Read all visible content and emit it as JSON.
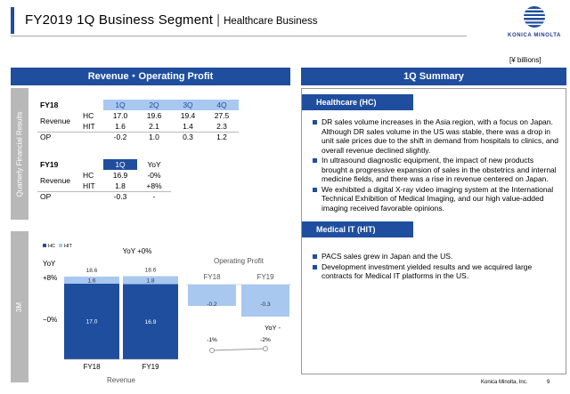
{
  "title": {
    "main": "FY2019 1Q Business Segment",
    "separator": "|",
    "sub": "Healthcare Business"
  },
  "logo": {
    "text": "KONICA MINOLTA"
  },
  "unit": "[¥ billions]",
  "left": {
    "header": "Revenue・Operating Profit",
    "side_label_top": "Quarterly Financial Results",
    "side_label_bottom": "3M",
    "fy18": {
      "label": "FY18",
      "quarters": [
        "1Q",
        "2Q",
        "3Q",
        "4Q"
      ],
      "revenue_label": "Revenue",
      "hc_label": "HC",
      "hit_label": "HIT",
      "hc": [
        "17.0",
        "19.6",
        "19.4",
        "27.5"
      ],
      "hit": [
        "1.6",
        "2.1",
        "1.4",
        "2.3"
      ],
      "op_label": "OP",
      "op": [
        "-0.2",
        "1.0",
        "0.3",
        "1.2"
      ]
    },
    "fy19": {
      "label": "FY19",
      "quarter": "1Q",
      "yoy_label": "YoY",
      "revenue_label": "Revenue",
      "hc_label": "HC",
      "hit_label": "HIT",
      "hc": "16.9",
      "hc_yoy": "-0%",
      "hit": "1.8",
      "hit_yoy": "+8%",
      "op_label": "OP",
      "op": "-0.3",
      "op_yoy": "-"
    }
  },
  "chart_data": [
    {
      "type": "bar",
      "title": "",
      "xlabel": "Revenue",
      "categories": [
        "FY18",
        "FY19"
      ],
      "series": [
        {
          "name": "HC",
          "values": [
            17.0,
            16.9
          ]
        },
        {
          "name": "HIT",
          "values": [
            1.6,
            1.8
          ]
        }
      ],
      "totals": [
        "18.6",
        "18.6"
      ],
      "hc_labels": [
        "17.0",
        "16.9"
      ],
      "hit_labels": [
        "1.6",
        "1.8"
      ],
      "legend": [
        "HC",
        "HIT"
      ],
      "annot": {
        "yoy_total": "YoY +0%",
        "yoy": "YoY",
        "plus": "+8%",
        "minus": "−0%"
      },
      "ylim": [
        0,
        20
      ]
    },
    {
      "type": "bar",
      "title": "Operating Profit",
      "categories": [
        "FY18",
        "FY19"
      ],
      "values": [
        -0.2,
        -0.3
      ],
      "labels": [
        "-0.2",
        "-0.3"
      ],
      "margin_labels": [
        "-1%",
        "-2%"
      ],
      "yoy_label": "YoY -"
    }
  ],
  "summary": {
    "header": "1Q Summary",
    "hc_tag": "Healthcare (HC)",
    "hc_bullets": [
      "DR sales volume increases in the Asia region, with a focus on Japan. Although DR sales volume in the US was stable, there was a drop in unit sale prices due to the shift in demand from hospitals to clinics, and overall revenue declined slightly.",
      "In ultrasound diagnostic equipment, the impact of new products brought a progressive expansion of sales in the obstetrics and internal medicine fields, and there was a rise in revenue centered on Japan.",
      "We exhibited a digital X-ray video imaging system at the International Technical Exhibition of Medical Imaging, and our high value-added imaging received favorable opinions."
    ],
    "hit_tag": "Medical IT  (HIT)",
    "hit_bullets": [
      "PACS sales grew in Japan and the US.",
      "Development investment yielded results and we acquired large contracts for Medical IT platforms in the US."
    ]
  },
  "footer": {
    "company": "Konica Minolta, Inc.",
    "page": "9"
  },
  "colors": {
    "accent": "#1f4e9e",
    "light": "#a9c8f0",
    "gray": "#b8b8b8"
  }
}
